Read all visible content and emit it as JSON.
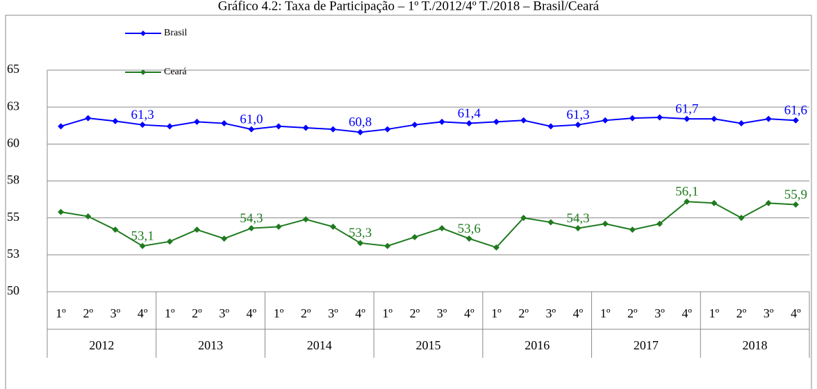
{
  "chart_data": {
    "type": "line",
    "title": "Gráfico 4.2: Taxa de Participação – 1º T./2012/4º T./2018 – Brasil/Ceará",
    "categories": [
      "1º",
      "2º",
      "3º",
      "4º",
      "1º",
      "2º",
      "3º",
      "4º",
      "1º",
      "2º",
      "3º",
      "4º",
      "1º",
      "2º",
      "3º",
      "4º",
      "1º",
      "2º",
      "3º",
      "4º",
      "1º",
      "2º",
      "3º",
      "4º",
      "1º",
      "2º",
      "3º",
      "4º"
    ],
    "groups": [
      "2012",
      "2013",
      "2014",
      "2015",
      "2016",
      "2017",
      "2018"
    ],
    "series": [
      {
        "name": "Brasil",
        "color": "#0000ff",
        "values": [
          61.2,
          61.75,
          61.55,
          61.3,
          61.2,
          61.5,
          61.4,
          61.0,
          61.2,
          61.1,
          61.0,
          60.8,
          61.0,
          61.3,
          61.5,
          61.4,
          61.5,
          61.6,
          61.2,
          61.3,
          61.6,
          61.75,
          61.8,
          61.7,
          61.7,
          61.4,
          61.7,
          61.6
        ],
        "value_labels": [
          null,
          null,
          null,
          "61,3",
          null,
          null,
          null,
          "61,0",
          null,
          null,
          null,
          "60,8",
          null,
          null,
          null,
          "61,4",
          null,
          null,
          null,
          "61,3",
          null,
          null,
          null,
          "61,7",
          null,
          null,
          null,
          "61,6"
        ]
      },
      {
        "name": "Ceará",
        "color": "#1e7a1e",
        "values": [
          55.4,
          55.1,
          54.2,
          53.1,
          53.4,
          54.2,
          53.6,
          54.3,
          54.4,
          54.9,
          54.4,
          53.3,
          53.1,
          53.7,
          54.3,
          53.6,
          53.0,
          55.0,
          54.7,
          54.3,
          54.6,
          54.2,
          54.6,
          56.1,
          56.0,
          55.0,
          56.0,
          55.9
        ],
        "value_labels": [
          null,
          null,
          null,
          "53,1",
          null,
          null,
          null,
          "54,3",
          null,
          null,
          null,
          "53,3",
          null,
          null,
          null,
          "53,6",
          null,
          null,
          null,
          "54,3",
          null,
          null,
          null,
          "56,1",
          null,
          null,
          null,
          "55,9"
        ]
      }
    ],
    "ylim": [
      50,
      65
    ],
    "yticks": [
      50,
      {
        "value": 52.5,
        "label": "53"
      },
      55,
      {
        "value": 57.5,
        "label": "58"
      },
      60,
      {
        "value": 62.5,
        "label": "63"
      },
      65
    ],
    "grid": true,
    "legend": "top-left"
  }
}
